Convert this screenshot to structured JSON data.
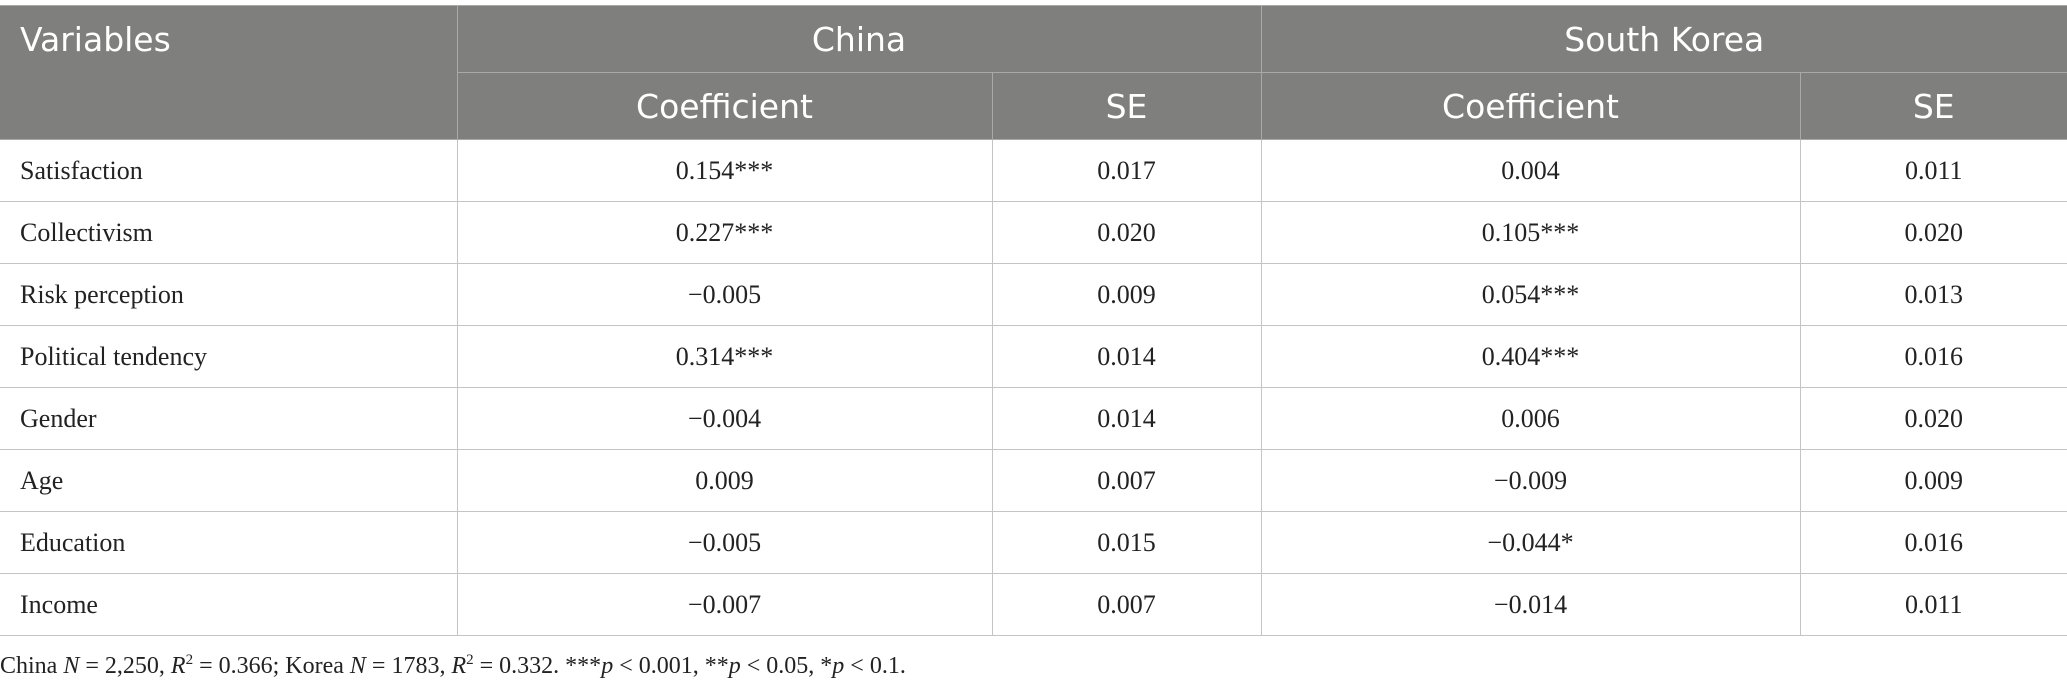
{
  "table": {
    "header": {
      "variables": "Variables",
      "groups": [
        "China",
        "South Korea"
      ],
      "subheaders": [
        "Coefficient",
        "SE",
        "Coefficient",
        "SE"
      ]
    },
    "rows": [
      [
        "Satisfaction",
        "0.154***",
        "0.017",
        "0.004",
        "0.011"
      ],
      [
        "Collectivism",
        "0.227***",
        "0.020",
        "0.105***",
        "0.020"
      ],
      [
        "Risk perception",
        "−0.005",
        "0.009",
        "0.054***",
        "0.013"
      ],
      [
        "Political tendency",
        "0.314***",
        "0.014",
        "0.404***",
        "0.016"
      ],
      [
        "Gender",
        "−0.004",
        "0.014",
        "0.006",
        "0.020"
      ],
      [
        "Age",
        "0.009",
        "0.007",
        "−0.009",
        "0.009"
      ],
      [
        "Education",
        "−0.005",
        "0.015",
        "−0.044*",
        "0.016"
      ],
      [
        "Income",
        "−0.007",
        "0.007",
        "−0.014",
        "0.011"
      ]
    ]
  },
  "footnote": [
    "China ",
    "N",
    " = 2,250, ",
    "R",
    "2",
    " = 0.366; Korea ",
    "N",
    " = 1783, ",
    "R",
    "2",
    " = 0.332. ***",
    "p",
    " < 0.001, **",
    "p",
    " < 0.05, *",
    "p",
    " < 0.1."
  ]
}
